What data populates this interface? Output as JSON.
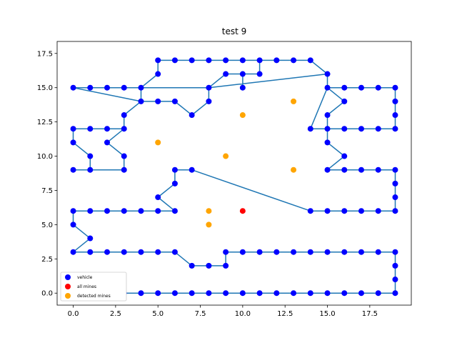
{
  "chart_data": {
    "type": "scatter",
    "title": "test 9",
    "xlabel": "",
    "ylabel": "",
    "xlim": [
      -0.95,
      19.95
    ],
    "ylim": [
      -0.875,
      18.375
    ],
    "x_ticks": [
      0.0,
      2.5,
      5.0,
      7.5,
      10.0,
      12.5,
      15.0,
      17.5
    ],
    "x_tick_labels": [
      "0.0",
      "2.5",
      "5.0",
      "7.5",
      "10.0",
      "12.5",
      "15.0",
      "17.5"
    ],
    "y_ticks": [
      0.0,
      2.5,
      5.0,
      7.5,
      10.0,
      12.5,
      15.0,
      17.5
    ],
    "y_tick_labels": [
      "0.0",
      "2.5",
      "5.0",
      "7.5",
      "10.0",
      "12.5",
      "15.0",
      "17.5"
    ],
    "grid": false,
    "legend_position": "bottom-left",
    "path_color": "#1f77b4",
    "path": [
      [
        0,
        0
      ],
      [
        1,
        0
      ],
      [
        2,
        0
      ],
      [
        3,
        0
      ],
      [
        4,
        0
      ],
      [
        5,
        0
      ],
      [
        6,
        0
      ],
      [
        7,
        0
      ],
      [
        8,
        0
      ],
      [
        9,
        0
      ],
      [
        10,
        0
      ],
      [
        11,
        0
      ],
      [
        12,
        0
      ],
      [
        13,
        0
      ],
      [
        14,
        0
      ],
      [
        15,
        0
      ],
      [
        16,
        0
      ],
      [
        17,
        0
      ],
      [
        18,
        0
      ],
      [
        19,
        0
      ],
      [
        19,
        1
      ],
      [
        19,
        2
      ],
      [
        19,
        3
      ],
      [
        18,
        3
      ],
      [
        17,
        3
      ],
      [
        16,
        3
      ],
      [
        15,
        3
      ],
      [
        14,
        3
      ],
      [
        13,
        3
      ],
      [
        12,
        3
      ],
      [
        11,
        3
      ],
      [
        10,
        3
      ],
      [
        9,
        3
      ],
      [
        9,
        2
      ],
      [
        8,
        2
      ],
      [
        7,
        2
      ],
      [
        6,
        3
      ],
      [
        5,
        3
      ],
      [
        4,
        3
      ],
      [
        3,
        3
      ],
      [
        2,
        3
      ],
      [
        1,
        3
      ],
      [
        0,
        3
      ],
      [
        1,
        4
      ],
      [
        0,
        5
      ],
      [
        0,
        6
      ],
      [
        1,
        6
      ],
      [
        2,
        6
      ],
      [
        3,
        6
      ],
      [
        4,
        6
      ],
      [
        5,
        6
      ],
      [
        6,
        6
      ],
      [
        5,
        7
      ],
      [
        6,
        8
      ],
      [
        6,
        9
      ],
      [
        7,
        9
      ],
      [
        14,
        6
      ],
      [
        15,
        6
      ],
      [
        16,
        6
      ],
      [
        17,
        6
      ],
      [
        18,
        6
      ],
      [
        19,
        6
      ],
      [
        19,
        7
      ],
      [
        19,
        8
      ],
      [
        19,
        9
      ],
      [
        18,
        9
      ],
      [
        17,
        9
      ],
      [
        16,
        9
      ],
      [
        15,
        9
      ],
      [
        16,
        10
      ],
      [
        15,
        11
      ],
      [
        15,
        12
      ],
      [
        16,
        12
      ],
      [
        17,
        12
      ],
      [
        18,
        12
      ],
      [
        19,
        12
      ],
      [
        19,
        13
      ],
      [
        19,
        14
      ],
      [
        19,
        15
      ],
      [
        18,
        15
      ],
      [
        17,
        15
      ],
      [
        16,
        15
      ],
      [
        15,
        15
      ],
      [
        16,
        14
      ],
      [
        15,
        13
      ],
      [
        15,
        12
      ],
      [
        14,
        12
      ],
      [
        15,
        15
      ],
      [
        15,
        16
      ],
      [
        14,
        17
      ],
      [
        13,
        17
      ],
      [
        12,
        17
      ],
      [
        11,
        17
      ],
      [
        10,
        17
      ],
      [
        9,
        17
      ],
      [
        8,
        17
      ],
      [
        7,
        17
      ],
      [
        6,
        17
      ],
      [
        5,
        17
      ],
      [
        5,
        16
      ],
      [
        4,
        15
      ],
      [
        3,
        15
      ],
      [
        2,
        15
      ],
      [
        1,
        15
      ],
      [
        0,
        15
      ],
      [
        4,
        14
      ],
      [
        5,
        14
      ],
      [
        6,
        14
      ],
      [
        7,
        13
      ],
      [
        8,
        14
      ],
      [
        8,
        15
      ],
      [
        9,
        16
      ],
      [
        10,
        16
      ],
      [
        10,
        15
      ],
      [
        10,
        16
      ],
      [
        11,
        16
      ],
      [
        11,
        17
      ],
      [
        14,
        17
      ],
      [
        15,
        16
      ],
      [
        8,
        15
      ],
      [
        4,
        15
      ],
      [
        4,
        14
      ],
      [
        3,
        13
      ],
      [
        3,
        12
      ],
      [
        2,
        12
      ],
      [
        1,
        12
      ],
      [
        0,
        12
      ],
      [
        0,
        11
      ],
      [
        1,
        10
      ],
      [
        1,
        9
      ],
      [
        0,
        9
      ],
      [
        1,
        9
      ],
      [
        3,
        9
      ],
      [
        3,
        10
      ],
      [
        2,
        11
      ],
      [
        3,
        12
      ]
    ],
    "series": [
      {
        "name": "vehicle",
        "color": "#0000ff",
        "points": [
          [
            0,
            0
          ],
          [
            1,
            0
          ],
          [
            2,
            0
          ],
          [
            3,
            0
          ],
          [
            4,
            0
          ],
          [
            5,
            0
          ],
          [
            6,
            0
          ],
          [
            7,
            0
          ],
          [
            8,
            0
          ],
          [
            9,
            0
          ],
          [
            10,
            0
          ],
          [
            11,
            0
          ],
          [
            12,
            0
          ],
          [
            13,
            0
          ],
          [
            14,
            0
          ],
          [
            15,
            0
          ],
          [
            16,
            0
          ],
          [
            17,
            0
          ],
          [
            18,
            0
          ],
          [
            19,
            0
          ],
          [
            19,
            1
          ],
          [
            19,
            2
          ],
          [
            19,
            3
          ],
          [
            18,
            3
          ],
          [
            17,
            3
          ],
          [
            16,
            3
          ],
          [
            15,
            3
          ],
          [
            14,
            3
          ],
          [
            13,
            3
          ],
          [
            12,
            3
          ],
          [
            11,
            3
          ],
          [
            10,
            3
          ],
          [
            9,
            3
          ],
          [
            9,
            2
          ],
          [
            8,
            2
          ],
          [
            7,
            2
          ],
          [
            6,
            3
          ],
          [
            5,
            3
          ],
          [
            4,
            3
          ],
          [
            3,
            3
          ],
          [
            2,
            3
          ],
          [
            1,
            3
          ],
          [
            0,
            3
          ],
          [
            1,
            4
          ],
          [
            0,
            5
          ],
          [
            0,
            6
          ],
          [
            1,
            6
          ],
          [
            2,
            6
          ],
          [
            3,
            6
          ],
          [
            4,
            6
          ],
          [
            5,
            6
          ],
          [
            6,
            6
          ],
          [
            5,
            7
          ],
          [
            6,
            8
          ],
          [
            6,
            9
          ],
          [
            7,
            9
          ],
          [
            14,
            6
          ],
          [
            15,
            6
          ],
          [
            16,
            6
          ],
          [
            17,
            6
          ],
          [
            18,
            6
          ],
          [
            19,
            6
          ],
          [
            19,
            7
          ],
          [
            19,
            8
          ],
          [
            19,
            9
          ],
          [
            18,
            9
          ],
          [
            17,
            9
          ],
          [
            16,
            9
          ],
          [
            15,
            9
          ],
          [
            16,
            10
          ],
          [
            15,
            11
          ],
          [
            15,
            12
          ],
          [
            16,
            12
          ],
          [
            17,
            12
          ],
          [
            18,
            12
          ],
          [
            19,
            12
          ],
          [
            19,
            13
          ],
          [
            19,
            14
          ],
          [
            19,
            15
          ],
          [
            18,
            15
          ],
          [
            17,
            15
          ],
          [
            16,
            15
          ],
          [
            15,
            15
          ],
          [
            16,
            14
          ],
          [
            15,
            13
          ],
          [
            14,
            12
          ],
          [
            15,
            16
          ],
          [
            14,
            17
          ],
          [
            13,
            17
          ],
          [
            12,
            17
          ],
          [
            11,
            17
          ],
          [
            10,
            17
          ],
          [
            9,
            17
          ],
          [
            8,
            17
          ],
          [
            7,
            17
          ],
          [
            6,
            17
          ],
          [
            5,
            17
          ],
          [
            5,
            16
          ],
          [
            4,
            15
          ],
          [
            3,
            15
          ],
          [
            2,
            15
          ],
          [
            1,
            15
          ],
          [
            0,
            15
          ],
          [
            4,
            14
          ],
          [
            5,
            14
          ],
          [
            6,
            14
          ],
          [
            7,
            13
          ],
          [
            8,
            14
          ],
          [
            8,
            15
          ],
          [
            9,
            16
          ],
          [
            10,
            16
          ],
          [
            10,
            15
          ],
          [
            11,
            16
          ],
          [
            3,
            13
          ],
          [
            3,
            12
          ],
          [
            2,
            12
          ],
          [
            1,
            12
          ],
          [
            0,
            12
          ],
          [
            0,
            11
          ],
          [
            1,
            10
          ],
          [
            1,
            9
          ],
          [
            0,
            9
          ],
          [
            3,
            9
          ],
          [
            3,
            10
          ],
          [
            2,
            11
          ]
        ]
      },
      {
        "name": "all mines",
        "color": "#ff0000",
        "points": [
          [
            10,
            6
          ]
        ]
      },
      {
        "name": "detected mines",
        "color": "#ffa500",
        "points": [
          [
            5,
            11
          ],
          [
            9,
            10
          ],
          [
            10,
            13
          ],
          [
            13,
            14
          ],
          [
            13,
            9
          ],
          [
            8,
            6
          ],
          [
            8,
            5
          ]
        ]
      }
    ]
  }
}
